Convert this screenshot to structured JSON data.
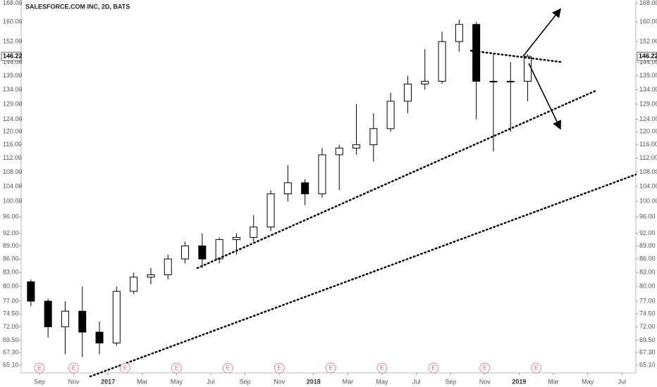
{
  "chart_data": {
    "type": "candlestick",
    "title": "SALESFORCE.COM INC, 2D, BATS",
    "log_scale": true,
    "color_up": "#ffffff",
    "color_down": "#000000",
    "color_edge": "#000000",
    "x": [
      "2016-08",
      "2016-09",
      "2016-10",
      "2016-11",
      "2016-12",
      "2017-01",
      "2017-02",
      "2017-03",
      "2017-04",
      "2017-05",
      "2017-06",
      "2017-07",
      "2017-08",
      "2017-09",
      "2017-10",
      "2017-11",
      "2017-12",
      "2018-01",
      "2018-02",
      "2018-03",
      "2018-04",
      "2018-05",
      "2018-06",
      "2018-07",
      "2018-08",
      "2018-09",
      "2018-10",
      "2018-11",
      "2018-12",
      "2019-01"
    ],
    "open": [
      81,
      77,
      72,
      75,
      71,
      69,
      79,
      82,
      82.5,
      86,
      89,
      86,
      90.5,
      91,
      93.5,
      102,
      105,
      102,
      113,
      115,
      116,
      121,
      130,
      136,
      137,
      152,
      159,
      137,
      137,
      137
    ],
    "high": [
      81.5,
      77.5,
      77,
      80,
      73,
      80,
      83,
      84,
      87,
      90,
      92,
      91,
      92,
      96.5,
      103,
      110,
      106,
      115,
      116,
      129,
      126,
      133,
      139,
      149,
      156,
      161,
      160,
      147,
      144,
      147
    ],
    "low": [
      76,
      70,
      67,
      66.5,
      67,
      68.5,
      78.5,
      80.5,
      81.5,
      85,
      84,
      85,
      87,
      90,
      92.5,
      100,
      99,
      101,
      103,
      113,
      111,
      120,
      126,
      134,
      136,
      148,
      124,
      114,
      120,
      130
    ],
    "close": [
      77,
      72,
      75,
      71,
      69,
      79,
      82,
      82.5,
      86,
      89,
      86,
      90.5,
      91,
      93.5,
      102,
      105,
      102,
      113,
      115,
      116,
      121,
      130,
      136,
      137,
      152,
      159,
      137,
      137,
      137,
      146.22
    ],
    "ylim": [
      63.8,
      169.5
    ],
    "yticks": [
      {
        "value": 65.1,
        "label": "65.10"
      },
      {
        "value": 67.3,
        "label": "67.30"
      },
      {
        "value": 69.5,
        "label": "69.50"
      },
      {
        "value": 72,
        "label": "72.00"
      },
      {
        "value": 74.5,
        "label": "74.50"
      },
      {
        "value": 77,
        "label": "77.00"
      },
      {
        "value": 80,
        "label": "80.00"
      },
      {
        "value": 83,
        "label": "83.00"
      },
      {
        "value": 86,
        "label": "86.00"
      },
      {
        "value": 89,
        "label": "89.00"
      },
      {
        "value": 92,
        "label": "92.00"
      },
      {
        "value": 96,
        "label": "96.00"
      },
      {
        "value": 100,
        "label": "100.00"
      },
      {
        "value": 104,
        "label": "104.00"
      },
      {
        "value": 108,
        "label": "108.00"
      },
      {
        "value": 112,
        "label": "112.00"
      },
      {
        "value": 116,
        "label": "116.00"
      },
      {
        "value": 120,
        "label": "120.00"
      },
      {
        "value": 124,
        "label": "124.00"
      },
      {
        "value": 129,
        "label": "129.00"
      },
      {
        "value": 134,
        "label": "134.00"
      },
      {
        "value": 139,
        "label": "139.00"
      },
      {
        "value": 144,
        "label": "144.00"
      },
      {
        "value": 152,
        "label": "152.00"
      },
      {
        "value": 160,
        "label": "160.00"
      },
      {
        "value": 168,
        "label": "168.00"
      }
    ],
    "last_price": {
      "value": 146.22,
      "label": "146.22"
    },
    "xticks": [
      {
        "value": "2016-09",
        "label": "Sep"
      },
      {
        "value": "2016-11",
        "label": "Nov"
      },
      {
        "value": "2017-01",
        "label": "2017"
      },
      {
        "value": "2017-03",
        "label": "Mar"
      },
      {
        "value": "2017-05",
        "label": "May"
      },
      {
        "value": "2017-07",
        "label": "Jul"
      },
      {
        "value": "2017-09",
        "label": "Sep"
      },
      {
        "value": "2017-11",
        "label": "Nov"
      },
      {
        "value": "2018-01",
        "label": "2018"
      },
      {
        "value": "2018-03",
        "label": "Mar"
      },
      {
        "value": "2018-05",
        "label": "May"
      },
      {
        "value": "2018-07",
        "label": "Jul"
      },
      {
        "value": "2018-09",
        "label": "Sep"
      },
      {
        "value": "2018-11",
        "label": "Nov"
      },
      {
        "value": "2019-01",
        "label": "2019"
      },
      {
        "value": "2019-03",
        "label": "Mar"
      },
      {
        "value": "2019-05",
        "label": "May"
      },
      {
        "value": "2019-07",
        "label": "Jul"
      }
    ],
    "earnings": [
      {
        "x": "2016-09",
        "label": "E"
      },
      {
        "x": "2016-11",
        "label": "E"
      },
      {
        "x": "2017-02",
        "label": "E"
      },
      {
        "x": "2017-05",
        "label": "E"
      },
      {
        "x": "2017-08",
        "label": "E"
      },
      {
        "x": "2017-11",
        "label": "E"
      },
      {
        "x": "2018-02",
        "label": "E"
      },
      {
        "x": "2018-05",
        "label": "E"
      },
      {
        "x": "2018-08",
        "label": "E"
      },
      {
        "x": "2018-11",
        "label": "E"
      },
      {
        "x": "2019-02",
        "label": "E"
      }
    ]
  }
}
